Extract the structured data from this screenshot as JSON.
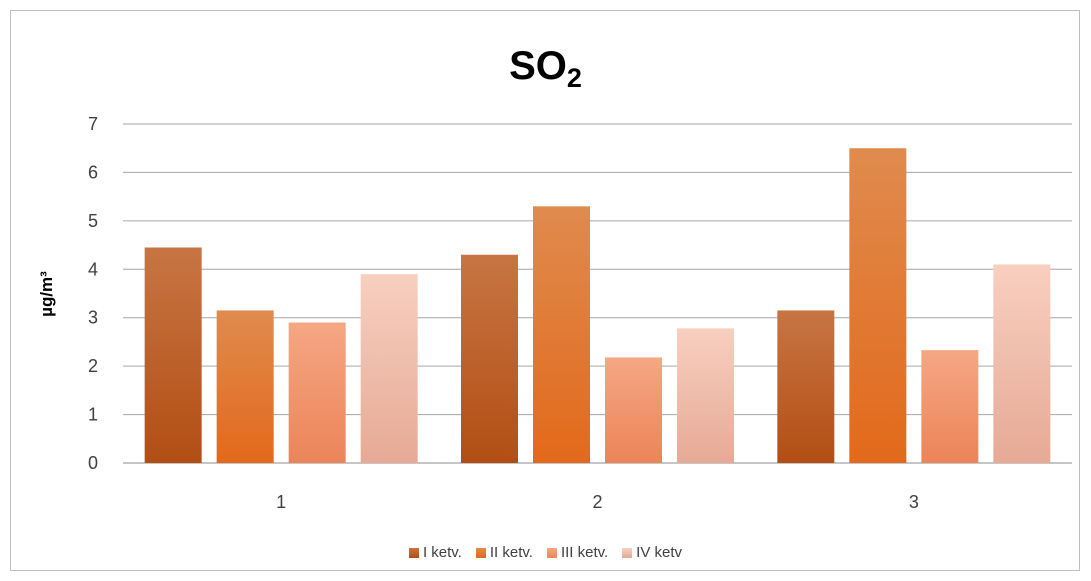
{
  "chart_data": {
    "type": "bar",
    "title": "SO",
    "title_subscript": "2",
    "ylabel": "µg/m³",
    "xlabel": "",
    "categories": [
      "1",
      "2",
      "3"
    ],
    "ylim": [
      0,
      7
    ],
    "yticks": [
      "0",
      "1",
      "2",
      "3",
      "4",
      "5",
      "6",
      "7"
    ],
    "grid": true,
    "legend_position": "bottom",
    "series": [
      {
        "name": "I ketv.",
        "values": [
          4.45,
          4.3,
          3.15
        ],
        "color_top": "#c87543",
        "color_bottom": "#b24e14"
      },
      {
        "name": "II ketv.",
        "values": [
          3.15,
          5.3,
          6.5
        ],
        "color_top": "#e08b4e",
        "color_bottom": "#e2691b"
      },
      {
        "name": "III ketv.",
        "values": [
          2.9,
          2.18,
          2.33
        ],
        "color_top": "#f5a784",
        "color_bottom": "#ec8459"
      },
      {
        "name": "IV ketv",
        "values": [
          3.9,
          2.78,
          4.1
        ],
        "color_top": "#f8cfc0",
        "color_bottom": "#e6aa95"
      }
    ]
  }
}
